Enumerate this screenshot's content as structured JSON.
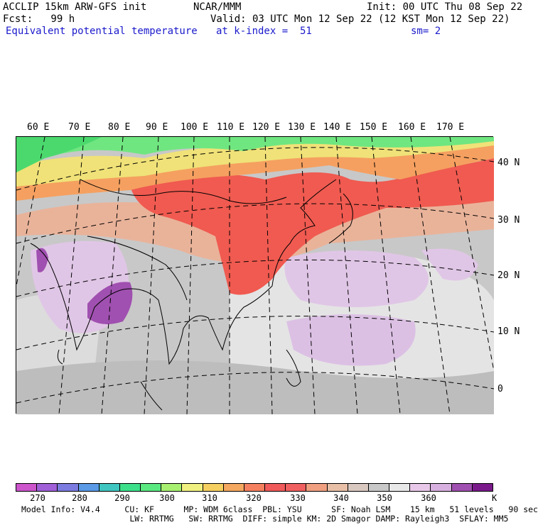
{
  "header": {
    "left1": "ACCLIP 15km ARW-GFS init",
    "left2": "Fcst:   99 h",
    "field": "Equivalent potential temperature",
    "center": "NCAR/MMM",
    "init": "Init: 00 UTC Thu 08 Sep 22",
    "valid": "Valid: 03 UTC Mon 12 Sep 22 (12 KST Mon 12 Sep 22)",
    "level": "at k-index =  51",
    "smooth": "sm= 2"
  },
  "map": {
    "lon_labels": [
      "60 E",
      "70 E",
      "80 E",
      "90 E",
      "100 E",
      "110 E",
      "120 E",
      "130 E",
      "140 E",
      "150 E",
      "160 E",
      "170 E"
    ],
    "lat_labels": [
      "40 N",
      "30 N",
      "20 N",
      "10 N",
      "0"
    ]
  },
  "colorbar": {
    "colors": [
      "#cc55cc",
      "#a060d8",
      "#7b7be0",
      "#5a9ae6",
      "#3fc6c0",
      "#3de08a",
      "#5ae880",
      "#a8f070",
      "#f0f080",
      "#f5d060",
      "#f5a860",
      "#f58060",
      "#f05a5a",
      "#f06060",
      "#f0a080",
      "#e8c0a8",
      "#d8c8c0",
      "#c8c8c8",
      "#e8e8e8",
      "#e8c8e8",
      "#d8b0e0",
      "#a050b0",
      "#7a1a8a"
    ],
    "ticks": [
      "270",
      "280",
      "290",
      "300",
      "310",
      "320",
      "330",
      "340",
      "350",
      "360"
    ],
    "unit": "K"
  },
  "footer": {
    "line1": "Model Info: V4.4     CU: KF      MP: WDM 6class  PBL: YSU      SF: Noah LSM    15 km   51 levels   90 sec",
    "line2": "                      LW: RRTMG   SW: RRTMG  DIFF: simple KM: 2D Smagor DAMP: Rayleigh3  SFLAY: MM5"
  }
}
